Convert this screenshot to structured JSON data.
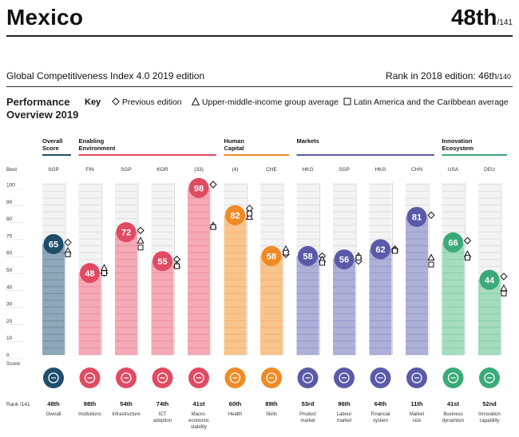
{
  "header": {
    "country": "Mexico",
    "rank": "48th",
    "rank_total": "/141",
    "edition": "Global Competitiveness Index 4.0 2019 edition",
    "rank_2018_label": "Rank in 2018 edition: 46th",
    "rank_2018_total": "/140"
  },
  "performance": {
    "title": "Performance Overview 2019",
    "key_label": "Key",
    "legend": [
      "Previous edition",
      "Upper-middle-income group average",
      "Latin America and the Caribbean average"
    ]
  },
  "chart_data": {
    "type": "bar",
    "ylim": [
      0,
      100
    ],
    "y_ticks": [
      0,
      10,
      20,
      30,
      40,
      50,
      60,
      70,
      80,
      90,
      100
    ],
    "best_label": "Best",
    "score_label": "Score",
    "rank_label": "Rank /141",
    "groups": [
      {
        "name": "Overall Score",
        "color": "#1f4e6b",
        "start": 0,
        "end": 0
      },
      {
        "name": "Enabling Environment",
        "color": "#e04b62",
        "start": 1,
        "end": 4
      },
      {
        "name": "Human Capital",
        "color": "#f08a24",
        "start": 5,
        "end": 6
      },
      {
        "name": "Markets",
        "color": "#5a5aa8",
        "start": 7,
        "end": 10
      },
      {
        "name": "Innovation Ecosystem",
        "color": "#3aaa78",
        "start": 11,
        "end": 12
      }
    ],
    "pillars": [
      {
        "label": "Overall",
        "best": "SGP",
        "score": 65,
        "rank": "48th",
        "prev": 66,
        "umi": 61,
        "lac": 59,
        "color": "#1f4e6b",
        "light": "#8fa8b8",
        "icon": "overall-icon"
      },
      {
        "label": "Institutions",
        "best": "FIN",
        "score": 48,
        "rank": "98th",
        "prev": 48,
        "umi": 51,
        "lac": 48,
        "color": "#e04b62",
        "light": "#f5aab6",
        "icon": "institutions-icon"
      },
      {
        "label": "Infrastructure",
        "best": "SGP",
        "score": 72,
        "rank": "54th",
        "prev": 73,
        "umi": 67,
        "lac": 63,
        "color": "#e04b62",
        "light": "#f5aab6",
        "icon": "infrastructure-icon"
      },
      {
        "label": "ICT adoption",
        "best": "KOR",
        "score": 55,
        "rank": "74th",
        "prev": 56,
        "umi": 53,
        "lac": 52,
        "color": "#e04b62",
        "light": "#f5aab6",
        "icon": "ict-icon"
      },
      {
        "label": "Macro-economic stability",
        "best": "(33)",
        "score": 98,
        "rank": "41st",
        "prev": 100,
        "umi": 76,
        "lac": 75,
        "color": "#e04b62",
        "light": "#f5aab6",
        "icon": "macro-icon"
      },
      {
        "label": "Health",
        "best": "(4)",
        "score": 82,
        "rank": "60th",
        "prev": 86,
        "umi": 81,
        "lac": 83,
        "color": "#f08a24",
        "light": "#f8c48e",
        "icon": "health-icon"
      },
      {
        "label": "Skills",
        "best": "CHE",
        "score": 58,
        "rank": "89th",
        "prev": 59,
        "umi": 62,
        "lac": 60,
        "color": "#f08a24",
        "light": "#f8c48e",
        "icon": "skills-icon"
      },
      {
        "label": "Product market",
        "best": "HKG",
        "score": 58,
        "rank": "53rd",
        "prev": 58,
        "umi": 56,
        "lac": 54,
        "color": "#5a5aa8",
        "light": "#aeb0d8",
        "icon": "product-market-icon"
      },
      {
        "label": "Labour market",
        "best": "SGP",
        "score": 56,
        "rank": "96th",
        "prev": 55,
        "umi": 58,
        "lac": 57,
        "color": "#5a5aa8",
        "light": "#aeb0d8",
        "icon": "labour-market-icon"
      },
      {
        "label": "Financial system",
        "best": "HKG",
        "score": 62,
        "rank": "64th",
        "prev": 62,
        "umi": 62,
        "lac": 61,
        "color": "#5a5aa8",
        "light": "#aeb0d8",
        "icon": "financial-system-icon"
      },
      {
        "label": "Market size",
        "best": "CHN",
        "score": 81,
        "rank": "11th",
        "prev": 82,
        "umi": 57,
        "lac": 53,
        "color": "#5a5aa8",
        "light": "#aeb0d8",
        "icon": "market-size-icon"
      },
      {
        "label": "Business dynamism",
        "best": "USA",
        "score": 66,
        "rank": "41st",
        "prev": 67,
        "umi": 59,
        "lac": 57,
        "color": "#3aaa78",
        "light": "#a5dcbe",
        "icon": "business-dynamism-icon"
      },
      {
        "label": "Innovation capability",
        "best": "DEU",
        "score": 44,
        "rank": "52nd",
        "prev": 46,
        "umi": 39,
        "lac": 36,
        "color": "#3aaa78",
        "light": "#a5dcbe",
        "icon": "innovation-icon"
      }
    ]
  }
}
